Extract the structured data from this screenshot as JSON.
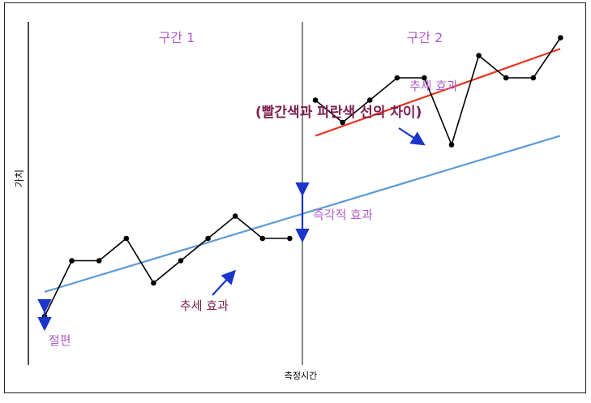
{
  "labels": {
    "segment1": "구간 1",
    "segment2": "구간 2",
    "y_axis": "가치",
    "x_axis": "측정시간",
    "intercept": "절편",
    "trend_effect_1": "추세 효과",
    "trend_effect_2": "추세 효과",
    "trend_difference": "(빨간색과 파란색 선의 차이)",
    "immediate_effect": "즉각적 효과"
  },
  "colors": {
    "series": "#000000",
    "baseline_trend": "#5b9bd5",
    "post_trend": "#e8321e",
    "arrow": "#1a35c8",
    "label_purple": "#b05cc8",
    "label_maroon": "#7a1f4e",
    "axis": "#000000"
  },
  "chart_data": {
    "type": "line",
    "series": [
      {
        "values": [
          0.5,
          3.0,
          3.0,
          4.0,
          2.0,
          3.0,
          4.0,
          5.0,
          4.0,
          4.0
        ]
      },
      {
        "values": [
          10.2,
          9.2,
          10.2,
          11.2,
          11.2,
          8.2,
          12.2,
          11.2,
          11.2,
          13.0
        ]
      }
    ],
    "segment_boundary_after_point": 10,
    "baseline_trend": {
      "start": 1.6,
      "end": 8.6
    },
    "post_trend": {
      "start": 8.6,
      "end": 12.5
    }
  }
}
